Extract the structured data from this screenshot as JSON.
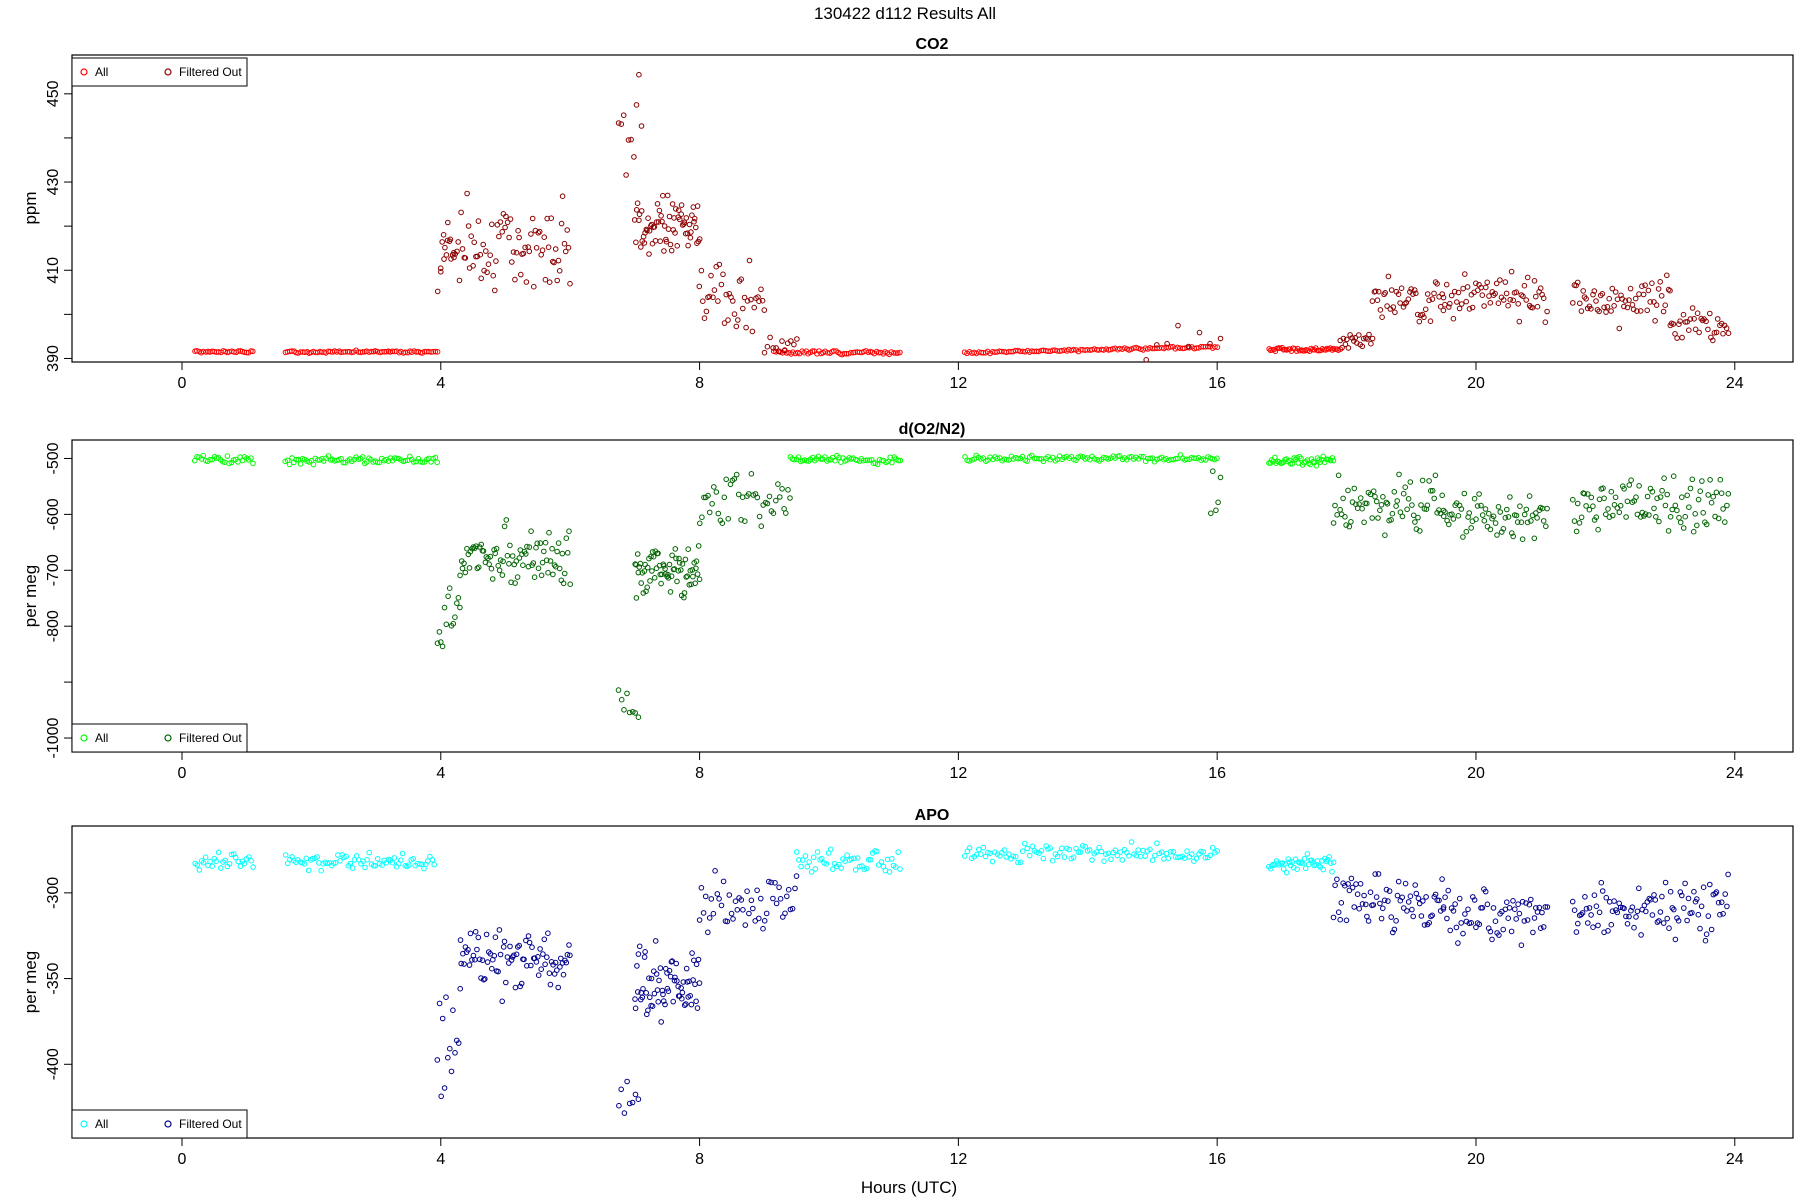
{
  "figure": {
    "main_title": "130422   d112   Results All",
    "xlabel": "Hours (UTC)"
  },
  "chart_data": [
    {
      "type": "scatter",
      "title": "CO2",
      "ylabel": "ppm",
      "xlim": [
        -1.7,
        24.9
      ],
      "ylim": [
        389.2,
        458.8
      ],
      "xticks": [
        0,
        4,
        8,
        12,
        16,
        20,
        24
      ],
      "yticks": [
        390,
        410,
        430,
        450
      ],
      "yticks_minor": [
        400,
        420,
        440
      ],
      "legend": {
        "position": "top-left",
        "entries": [
          "All",
          "Filtered Out"
        ]
      },
      "series": [
        {
          "name": "All",
          "color": "#ff0000",
          "segments": [
            {
              "x0": 0.2,
              "x1": 1.1,
              "base": 391.5,
              "noise": 0.2,
              "n": 28,
              "seed": 1
            },
            {
              "x0": 1.6,
              "x1": 3.95,
              "base": 391.5,
              "noise": 0.2,
              "n": 72,
              "seed": 2
            },
            {
              "x0": 9.15,
              "x1": 11.1,
              "base": 391.4,
              "noise": 0.35,
              "n": 60,
              "seed": 3
            },
            {
              "x0": 12.1,
              "x1": 16.0,
              "base": 391.3,
              "noise": 0.2,
              "n": 110,
              "seed": 4,
              "trend": 1.3
            },
            {
              "x0": 16.8,
              "x1": 17.9,
              "base": 392.0,
              "noise": 0.35,
              "n": 45,
              "seed": 5
            }
          ]
        },
        {
          "name": "Filtered Out",
          "color": "#8b0000",
          "segments": [
            {
              "x0": 3.95,
              "x1": 4.2,
              "base": 412,
              "noise": 8,
              "n": 6,
              "seed": 6
            },
            {
              "x0": 4.0,
              "x1": 6.0,
              "base": 416,
              "noise": 7,
              "n": 90,
              "seed": 7
            },
            {
              "x0": 6.75,
              "x1": 7.1,
              "base": 440,
              "noise": 10,
              "n": 10,
              "seed": 8
            },
            {
              "x0": 7.0,
              "x1": 8.0,
              "base": 420,
              "noise": 5,
              "n": 70,
              "seed": 9
            },
            {
              "x0": 8.0,
              "x1": 9.0,
              "base": 405,
              "noise": 6,
              "n": 40,
              "seed": 10
            },
            {
              "x0": 9.0,
              "x1": 9.5,
              "base": 393,
              "noise": 1.5,
              "n": 12,
              "seed": 11
            },
            {
              "x0": 14.9,
              "x1": 16.05,
              "base": 393,
              "noise": 3,
              "n": 8,
              "seed": 12
            },
            {
              "x0": 17.9,
              "x1": 18.4,
              "base": 394,
              "noise": 1.5,
              "n": 20,
              "seed": 13
            },
            {
              "x0": 18.4,
              "x1": 19.5,
              "base": 403,
              "noise": 4,
              "n": 45,
              "seed": 14
            },
            {
              "x0": 19.5,
              "x1": 21.1,
              "base": 404,
              "noise": 3.5,
              "n": 65,
              "seed": 15
            },
            {
              "x0": 21.5,
              "x1": 23.0,
              "base": 403,
              "noise": 3.5,
              "n": 60,
              "seed": 16
            },
            {
              "x0": 23.0,
              "x1": 23.9,
              "base": 398,
              "noise": 3,
              "n": 35,
              "seed": 17
            }
          ]
        }
      ]
    },
    {
      "type": "scatter",
      "title": "d(O2/N2)",
      "ylabel": "per meg",
      "xlim": [
        -1.7,
        24.9
      ],
      "ylim": [
        -1025,
        -467
      ],
      "xticks": [
        0,
        4,
        8,
        12,
        16,
        20,
        24
      ],
      "yticks": [
        -1000,
        -800,
        -700,
        -600,
        -500
      ],
      "yticks_minor": [
        -900
      ],
      "legend": {
        "position": "bottom-left",
        "entries": [
          "All",
          "Filtered Out"
        ]
      },
      "series": [
        {
          "name": "All",
          "color": "#00ff00",
          "segments": [
            {
              "x0": 0.2,
              "x1": 1.1,
              "base": -502,
              "noise": 5,
              "n": 28,
              "seed": 21
            },
            {
              "x0": 1.6,
              "x1": 3.95,
              "base": -503,
              "noise": 5,
              "n": 72,
              "seed": 22
            },
            {
              "x0": 9.4,
              "x1": 11.1,
              "base": -502,
              "noise": 6,
              "n": 55,
              "seed": 23
            },
            {
              "x0": 12.1,
              "x1": 16.0,
              "base": -500,
              "noise": 4,
              "n": 110,
              "seed": 24
            },
            {
              "x0": 16.8,
              "x1": 17.8,
              "base": -505,
              "noise": 5,
              "n": 45,
              "seed": 25
            }
          ]
        },
        {
          "name": "Filtered Out",
          "color": "#006400",
          "segments": [
            {
              "x0": 3.95,
              "x1": 4.3,
              "base": -790,
              "noise": 60,
              "n": 14,
              "seed": 26
            },
            {
              "x0": 4.3,
              "x1": 6.0,
              "base": -680,
              "noise": 40,
              "n": 85,
              "seed": 27
            },
            {
              "x0": 6.75,
              "x1": 7.05,
              "base": -940,
              "noise": 50,
              "n": 8,
              "seed": 28
            },
            {
              "x0": 7.0,
              "x1": 8.0,
              "base": -705,
              "noise": 35,
              "n": 70,
              "seed": 29
            },
            {
              "x0": 8.0,
              "x1": 9.4,
              "base": -580,
              "noise": 40,
              "n": 45,
              "seed": 30
            },
            {
              "x0": 15.9,
              "x1": 16.05,
              "base": -560,
              "noise": 40,
              "n": 5,
              "seed": 31
            },
            {
              "x0": 17.8,
              "x1": 19.5,
              "base": -580,
              "noise": 35,
              "n": 70,
              "seed": 32
            },
            {
              "x0": 19.5,
              "x1": 21.1,
              "base": -600,
              "noise": 30,
              "n": 65,
              "seed": 33
            },
            {
              "x0": 21.5,
              "x1": 23.9,
              "base": -580,
              "noise": 35,
              "n": 95,
              "seed": 34
            }
          ]
        }
      ]
    },
    {
      "type": "scatter",
      "title": "APO",
      "ylabel": "per meg",
      "xlim": [
        -1.7,
        24.9
      ],
      "ylim": [
        -443,
        -261
      ],
      "xticks": [
        0,
        4,
        8,
        12,
        16,
        20,
        24
      ],
      "yticks": [
        -400,
        -350,
        -300
      ],
      "yticks_minor": [],
      "legend": {
        "position": "bottom-left",
        "entries": [
          "All",
          "Filtered Out"
        ]
      },
      "series": [
        {
          "name": "All",
          "color": "#00ffff",
          "segments": [
            {
              "x0": 0.2,
              "x1": 1.1,
              "base": -282,
              "noise": 4,
              "n": 28,
              "seed": 41
            },
            {
              "x0": 1.6,
              "x1": 3.9,
              "base": -282,
              "noise": 4,
              "n": 72,
              "seed": 42
            },
            {
              "x0": 9.5,
              "x1": 11.1,
              "base": -281,
              "noise": 5,
              "n": 50,
              "seed": 43
            },
            {
              "x0": 12.1,
              "x1": 16.0,
              "base": -277,
              "noise": 4,
              "n": 110,
              "seed": 44
            },
            {
              "x0": 16.8,
              "x1": 17.8,
              "base": -283,
              "noise": 4,
              "n": 45,
              "seed": 45
            }
          ]
        },
        {
          "name": "Filtered Out",
          "color": "#00008b",
          "segments": [
            {
              "x0": 3.95,
              "x1": 4.3,
              "base": -385,
              "noise": 25,
              "n": 14,
              "seed": 46
            },
            {
              "x0": 4.3,
              "x1": 6.0,
              "base": -338,
              "noise": 14,
              "n": 85,
              "seed": 47
            },
            {
              "x0": 6.75,
              "x1": 7.05,
              "base": -415,
              "noise": 15,
              "n": 8,
              "seed": 48
            },
            {
              "x0": 7.0,
              "x1": 8.0,
              "base": -352,
              "noise": 15,
              "n": 70,
              "seed": 49
            },
            {
              "x0": 8.0,
              "x1": 9.5,
              "base": -305,
              "noise": 15,
              "n": 50,
              "seed": 50
            },
            {
              "x0": 17.8,
              "x1": 19.5,
              "base": -305,
              "noise": 12,
              "n": 70,
              "seed": 51
            },
            {
              "x0": 19.5,
              "x1": 21.1,
              "base": -315,
              "noise": 12,
              "n": 65,
              "seed": 52
            },
            {
              "x0": 21.5,
              "x1": 23.9,
              "base": -310,
              "noise": 12,
              "n": 95,
              "seed": 53
            }
          ]
        }
      ]
    }
  ]
}
